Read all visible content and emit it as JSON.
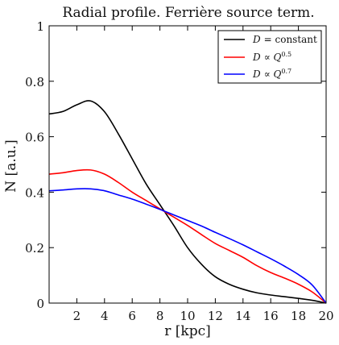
{
  "chart_data": {
    "type": "line",
    "title": "Radial profile. Ferrière source term.",
    "xlabel": "r [kpc]",
    "ylabel": "N [a.u.]",
    "xlim": [
      0,
      20
    ],
    "ylim": [
      0,
      1
    ],
    "x_ticks": [
      "2",
      "4",
      "6",
      "8",
      "10",
      "12",
      "14",
      "16",
      "18",
      "20"
    ],
    "y_ticks": [
      "0",
      "0.2",
      "0.4",
      "0.6",
      "0.8",
      "1"
    ],
    "grid": false,
    "legend_position": "top-right",
    "series": [
      {
        "name": "D = constant",
        "color": "#000000",
        "x": [
          0,
          1,
          2,
          3,
          4,
          5,
          6,
          7,
          8,
          9,
          10,
          11,
          12,
          13,
          14,
          15,
          16,
          17,
          18,
          19,
          20
        ],
        "y": [
          0.682,
          0.691,
          0.715,
          0.729,
          0.69,
          0.61,
          0.52,
          0.43,
          0.355,
          0.28,
          0.2,
          0.14,
          0.095,
          0.068,
          0.05,
          0.037,
          0.029,
          0.023,
          0.017,
          0.01,
          0.0
        ]
      },
      {
        "name": "D ∝ Q^0.5",
        "color": "#ff0000",
        "x": [
          0,
          1,
          2,
          3,
          4,
          5,
          6,
          7,
          8,
          9,
          10,
          11,
          12,
          13,
          14,
          15,
          16,
          17,
          18,
          19,
          20
        ],
        "y": [
          0.465,
          0.47,
          0.478,
          0.48,
          0.465,
          0.435,
          0.4,
          0.37,
          0.34,
          0.31,
          0.28,
          0.247,
          0.215,
          0.19,
          0.165,
          0.135,
          0.11,
          0.09,
          0.068,
          0.04,
          0.0
        ]
      },
      {
        "name": "D ∝ Q^0.7",
        "color": "#0000ff",
        "x": [
          0,
          1,
          2,
          3,
          4,
          5,
          6,
          7,
          8,
          9,
          10,
          11,
          12,
          13,
          14,
          15,
          16,
          17,
          18,
          19,
          20
        ],
        "y": [
          0.405,
          0.408,
          0.412,
          0.412,
          0.405,
          0.39,
          0.375,
          0.357,
          0.338,
          0.318,
          0.298,
          0.278,
          0.255,
          0.233,
          0.21,
          0.185,
          0.16,
          0.133,
          0.103,
          0.065,
          0.0
        ]
      }
    ]
  },
  "legend": {
    "entries": [
      {
        "prefix": "D",
        "rel": "= constant",
        "sup": ""
      },
      {
        "prefix": "D",
        "rel": "∝ Q",
        "sup": "0.5"
      },
      {
        "prefix": "D",
        "rel": "∝ Q",
        "sup": "0.7"
      }
    ]
  }
}
